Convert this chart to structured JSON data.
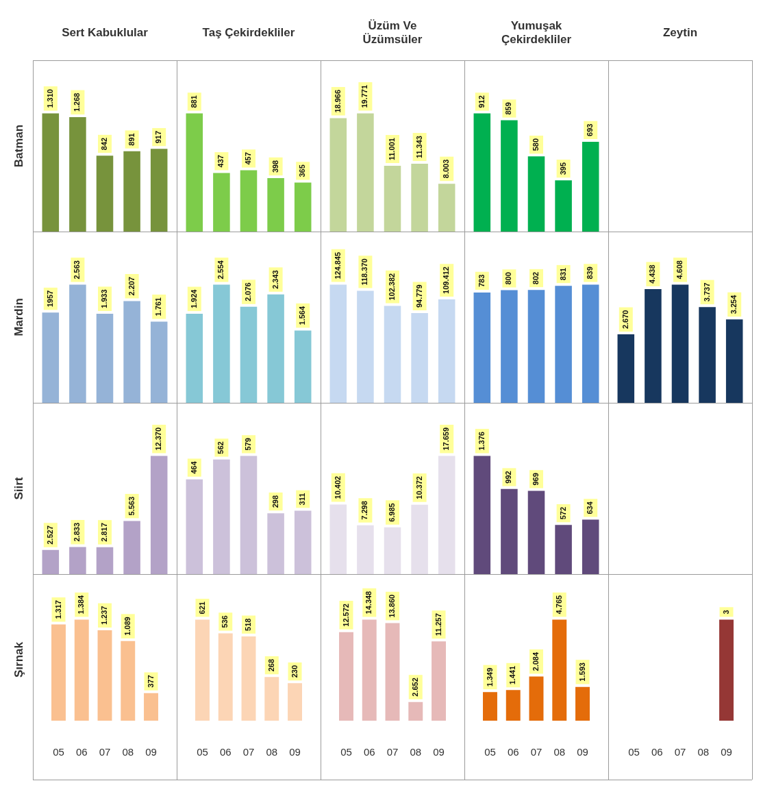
{
  "chart_data": [
    {
      "type": "bar",
      "title": "Sert Kabuklular",
      "ylabel": "Batman",
      "categories": [
        null,
        null,
        null,
        null,
        null
      ],
      "values": [
        1310,
        1268,
        842,
        891,
        917
      ],
      "value_labels": [
        "1.310",
        "1.268",
        "842",
        "891",
        "917"
      ],
      "color": "#77933c"
    },
    {
      "type": "bar",
      "title": "Taş Çekirdekliler",
      "categories": [
        null,
        null,
        null,
        null,
        null
      ],
      "values": [
        881,
        437,
        457,
        398,
        365
      ],
      "value_labels": [
        "881",
        "437",
        "457",
        "398",
        "365"
      ],
      "color": "#7dcc4a"
    },
    {
      "type": "bar",
      "title": "Üzüm Ve Üzümsüler",
      "categories": [
        null,
        null,
        null,
        null,
        null
      ],
      "values": [
        18966,
        19771,
        11001,
        11343,
        8003
      ],
      "value_labels": [
        "18.966",
        "19.771",
        "11.001",
        "11.343",
        "8.003"
      ],
      "color": "#c3d69b"
    },
    {
      "type": "bar",
      "title": "Yumuşak Çekirdekliler",
      "categories": [
        null,
        null,
        null,
        null,
        null
      ],
      "values": [
        912,
        859,
        580,
        395,
        693
      ],
      "value_labels": [
        "912",
        "859",
        "580",
        "395",
        "693"
      ],
      "color": "#00b050"
    },
    {
      "type": "other",
      "title": "Zeytin"
    },
    {
      "type": "bar",
      "ylabel": "Mardin",
      "categories": [
        null,
        null,
        null,
        null,
        null
      ],
      "values": [
        1957,
        2563,
        1933,
        2207,
        1761
      ],
      "value_labels": [
        "1957",
        "2.563",
        "1.933",
        "2.207",
        "1.761"
      ],
      "color": "#95b3d7"
    },
    {
      "type": "bar",
      "categories": [
        null,
        null,
        null,
        null,
        null
      ],
      "values": [
        1924,
        2554,
        2076,
        2343,
        1564
      ],
      "value_labels": [
        "1.924",
        "2.554",
        "2.076",
        "2.343",
        "1.564"
      ],
      "color": "#86c8d6"
    },
    {
      "type": "bar",
      "categories": [
        null,
        null,
        null,
        null,
        null
      ],
      "values": [
        124845,
        118370,
        102382,
        94779,
        109412
      ],
      "value_labels": [
        "124.845",
        "118.370",
        "102.382",
        "94.779",
        "109.412"
      ],
      "color": "#c6d9f1"
    },
    {
      "type": "bar",
      "categories": [
        null,
        null,
        null,
        null,
        null
      ],
      "values": [
        783,
        800,
        802,
        831,
        839
      ],
      "value_labels": [
        "783",
        "800",
        "802",
        "831",
        "839"
      ],
      "color": "#558ed5"
    },
    {
      "type": "bar",
      "categories": [
        null,
        null,
        null,
        null,
        null
      ],
      "values": [
        2670,
        4438,
        4608,
        3737,
        3254
      ],
      "value_labels": [
        "2.670",
        "4.438",
        "4.608",
        "3.737",
        "3.254"
      ],
      "color": "#17375e"
    },
    {
      "type": "bar",
      "ylabel": "Siirt",
      "categories": [
        null,
        null,
        null,
        null,
        null
      ],
      "values": [
        2527,
        2833,
        2817,
        5563,
        12370
      ],
      "value_labels": [
        "2.527",
        "2.833",
        "2.817",
        "5.563",
        "12.370"
      ],
      "color": "#b3a2c7"
    },
    {
      "type": "bar",
      "categories": [
        null,
        null,
        null,
        null,
        null
      ],
      "values": [
        464,
        562,
        579,
        298,
        311
      ],
      "value_labels": [
        "464",
        "562",
        "579",
        "298",
        "311"
      ],
      "color": "#ccc1da"
    },
    {
      "type": "bar",
      "categories": [
        null,
        null,
        null,
        null,
        null
      ],
      "values": [
        10402,
        7298,
        6985,
        10372,
        17659
      ],
      "value_labels": [
        "10.402",
        "7.298",
        "6.985",
        "10.372",
        "17.659"
      ],
      "color": "#e6e0ec"
    },
    {
      "type": "bar",
      "categories": [
        null,
        null,
        null,
        null,
        null
      ],
      "values": [
        1376,
        992,
        969,
        572,
        634
      ],
      "value_labels": [
        "1.376",
        "992",
        "969",
        "572",
        "634"
      ],
      "color": "#604a7b"
    },
    {
      "type": "bar",
      "ylabel": "Şırnak",
      "categories": [
        "05",
        "06",
        "07",
        "08",
        "09"
      ],
      "values": [
        1317,
        1384,
        1237,
        1089,
        377
      ],
      "value_labels": [
        "1.317",
        "1.384",
        "1.237",
        "1.089",
        "377"
      ],
      "color": "#fac090"
    },
    {
      "type": "bar",
      "categories": [
        "05",
        "06",
        "07",
        "08",
        "09"
      ],
      "values": [
        621,
        536,
        518,
        268,
        230
      ],
      "value_labels": [
        "621",
        "536",
        "518",
        "268",
        "230"
      ],
      "color": "#fcd5b5"
    },
    {
      "type": "bar",
      "categories": [
        "05",
        "06",
        "07",
        "08",
        "09"
      ],
      "values": [
        12572,
        14348,
        13860,
        2652,
        11257
      ],
      "value_labels": [
        "12.572",
        "14.348",
        "13.860",
        "2.652",
        "11.257"
      ],
      "color": "#e6b9b8"
    },
    {
      "type": "bar",
      "categories": [
        "05",
        "06",
        "07",
        "08",
        "09"
      ],
      "values": [
        1349,
        1441,
        2084,
        4765,
        1593
      ],
      "value_labels": [
        "1.349",
        "1.441",
        "2.084",
        "4.765",
        "1.593"
      ],
      "color": "#e46c0a"
    },
    {
      "type": "bar",
      "categories": [
        "05",
        "06",
        "07",
        "08",
        "09"
      ],
      "values": [
        null,
        null,
        null,
        null,
        3
      ],
      "value_labels": [
        null,
        null,
        null,
        null,
        "3"
      ],
      "color": "#953735"
    }
  ]
}
